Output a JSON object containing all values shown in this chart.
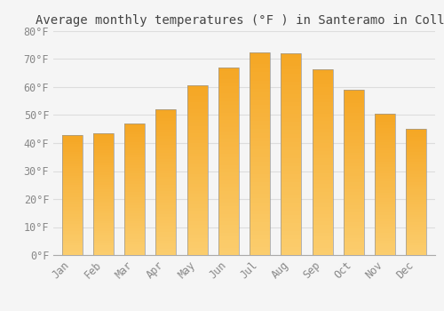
{
  "title": "Average monthly temperatures (°F ) in Santeramo in Colle",
  "months": [
    "Jan",
    "Feb",
    "Mar",
    "Apr",
    "May",
    "Jun",
    "Jul",
    "Aug",
    "Sep",
    "Oct",
    "Nov",
    "Dec"
  ],
  "values": [
    43,
    43.5,
    47,
    52,
    60.5,
    67,
    72.5,
    72,
    66.5,
    59,
    50.5,
    45
  ],
  "bar_color_top": "#F5A623",
  "bar_color_bottom": "#FBCD6D",
  "bar_edge_color": "#999999",
  "ylim": [
    0,
    80
  ],
  "yticks": [
    0,
    10,
    20,
    30,
    40,
    50,
    60,
    70,
    80
  ],
  "ytick_labels": [
    "0°F",
    "10°F",
    "20°F",
    "30°F",
    "40°F",
    "50°F",
    "60°F",
    "70°F",
    "80°F"
  ],
  "background_color": "#F5F5F5",
  "grid_color": "#DDDDDD",
  "title_fontsize": 10,
  "tick_fontsize": 8.5,
  "tick_color": "#888888"
}
